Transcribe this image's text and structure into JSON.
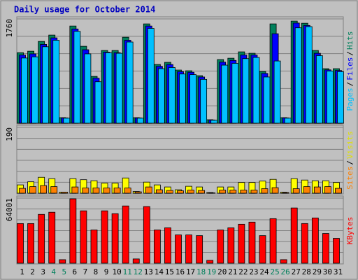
{
  "title": "Daily usage for October 2014",
  "legend_separator": "/",
  "highlight_indices": [
    3,
    4,
    10,
    11,
    17,
    18,
    24,
    25
  ],
  "highlight_color": "#00805c",
  "chart_data": [
    {
      "type": "bar",
      "ylim": [
        0,
        1760
      ],
      "yticks": [
        1760
      ],
      "series": [
        {
          "name": "Pages",
          "color": "#00c0ff",
          "values": [
            1100,
            1120,
            1290,
            1400,
            85,
            1550,
            1170,
            700,
            1190,
            1180,
            1370,
            85,
            1600,
            920,
            940,
            830,
            820,
            740,
            50,
            980,
            1010,
            1090,
            1110,
            780,
            1050,
            85,
            1610,
            1630,
            1140,
            880,
            870
          ]
        },
        {
          "name": "Files",
          "color": "#0000ff",
          "values": [
            1150,
            1170,
            1330,
            1440,
            90,
            1590,
            1240,
            760,
            1200,
            1190,
            1400,
            90,
            1640,
            960,
            990,
            870,
            860,
            780,
            55,
            1030,
            1060,
            1150,
            1150,
            840,
            1510,
            90,
            1690,
            1650,
            1180,
            900,
            890
          ]
        },
        {
          "name": "Hits",
          "color": "#00805c",
          "values": [
            1190,
            1215,
            1380,
            1487,
            94,
            1640,
            1298,
            790,
            1227,
            1227,
            1451,
            94,
            1676,
            991,
            1027,
            897,
            885,
            802,
            59,
            1074,
            1097,
            1204,
            1180,
            873,
            1676,
            94,
            1723,
            1687,
            1227,
            920,
            920
          ]
        }
      ]
    },
    {
      "type": "bar",
      "ylim": [
        0,
        190
      ],
      "yticks": [
        190
      ],
      "series": [
        {
          "name": "Sites",
          "color": "#ff8000",
          "values": [
            14,
            19,
            22,
            19,
            3,
            18,
            15,
            15,
            15,
            15,
            15,
            4,
            18,
            10,
            8,
            7,
            9,
            8,
            1,
            9,
            9,
            9,
            9,
            13,
            16,
            2,
            13,
            19,
            18,
            19,
            14
          ]
        },
        {
          "name": "Visits",
          "color": "#ffff00",
          "values": [
            24,
            33,
            46,
            42,
            3,
            42,
            39,
            36,
            29,
            29,
            44,
            5,
            32,
            24,
            18,
            10,
            20,
            18,
            2,
            18,
            18,
            31,
            31,
            35,
            40,
            3,
            42,
            38,
            36,
            36,
            31
          ]
        }
      ]
    },
    {
      "type": "bar",
      "ylim": [
        0,
        64001
      ],
      "yticks": [
        64001
      ],
      "categories": [
        "1",
        "2",
        "3",
        "4",
        "5",
        "6",
        "7",
        "8",
        "9",
        "10",
        "11",
        "12",
        "13",
        "14",
        "15",
        "16",
        "17",
        "18",
        "19",
        "20",
        "21",
        "22",
        "23",
        "24",
        "25",
        "26",
        "27",
        "28",
        "29",
        "30",
        "31"
      ],
      "series": [
        {
          "name": "KBytes",
          "color": "#ff0000",
          "values": [
            38970,
            38970,
            48000,
            50100,
            3480,
            63300,
            51500,
            32700,
            51500,
            48700,
            56300,
            4200,
            55700,
            32700,
            34800,
            27800,
            27800,
            27100,
            2800,
            32700,
            34800,
            38300,
            40400,
            27100,
            43800,
            3500,
            54300,
            39000,
            44500,
            29200,
            24400
          ]
        }
      ]
    }
  ]
}
